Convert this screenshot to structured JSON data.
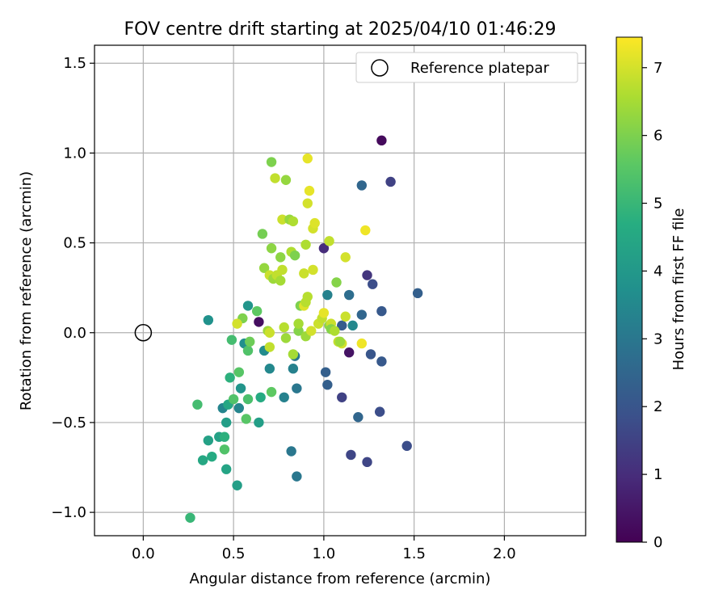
{
  "chart_data": {
    "type": "scatter",
    "title": "FOV centre drift starting at 2025/04/10 01:46:29",
    "xlabel": "Angular distance from reference (arcmin)",
    "ylabel": "Rotation from reference (arcmin)",
    "xlim": [
      -0.27,
      2.45
    ],
    "ylim": [
      -1.13,
      1.6
    ],
    "xticks": [
      0.0,
      0.5,
      1.0,
      1.5,
      2.0
    ],
    "xtick_labels": [
      "0.0",
      "0.5",
      "1.0",
      "1.5",
      "2.0"
    ],
    "yticks": [
      -1.0,
      -0.5,
      0.0,
      0.5,
      1.0,
      1.5
    ],
    "ytick_labels": [
      "−1.0",
      "−0.5",
      "0.0",
      "0.5",
      "1.0",
      "1.5"
    ],
    "grid": true,
    "legend": {
      "position": "top-right",
      "entries": [
        {
          "label": "Reference platepar",
          "marker": "open-circle"
        }
      ]
    },
    "reference": {
      "x": 0.0,
      "y": 0.0
    },
    "colorbar": {
      "label": "Hours from first FF file",
      "colormap": "viridis",
      "range": [
        0,
        7.45
      ],
      "ticks": [
        0,
        1,
        2,
        3,
        4,
        5,
        6,
        7
      ],
      "tick_labels": [
        "0",
        "1",
        "2",
        "3",
        "4",
        "5",
        "6",
        "7"
      ]
    },
    "points": [
      {
        "x": 1.32,
        "y": 1.07,
        "h": 0.2
      },
      {
        "x": 1.37,
        "y": 0.84,
        "h": 1.5
      },
      {
        "x": 1.21,
        "y": 0.82,
        "h": 2.5
      },
      {
        "x": 1.52,
        "y": 0.22,
        "h": 2.3
      },
      {
        "x": 1.24,
        "y": 0.32,
        "h": 1.2
      },
      {
        "x": 1.27,
        "y": 0.27,
        "h": 1.8
      },
      {
        "x": 1.0,
        "y": 0.47,
        "h": 1.0
      },
      {
        "x": 1.14,
        "y": 0.21,
        "h": 2.7
      },
      {
        "x": 1.02,
        "y": 0.21,
        "h": 3.3
      },
      {
        "x": 1.32,
        "y": 0.12,
        "h": 2.1
      },
      {
        "x": 1.21,
        "y": 0.1,
        "h": 2.5
      },
      {
        "x": 1.16,
        "y": 0.04,
        "h": 3.5
      },
      {
        "x": 1.1,
        "y": 0.04,
        "h": 2.2
      },
      {
        "x": 0.64,
        "y": 0.06,
        "h": 0.3
      },
      {
        "x": 1.14,
        "y": -0.11,
        "h": 0.4
      },
      {
        "x": 1.26,
        "y": -0.12,
        "h": 2.0
      },
      {
        "x": 1.32,
        "y": -0.16,
        "h": 2.1
      },
      {
        "x": 1.01,
        "y": -0.22,
        "h": 2.3
      },
      {
        "x": 1.02,
        "y": -0.29,
        "h": 2.3
      },
      {
        "x": 1.1,
        "y": -0.36,
        "h": 1.5
      },
      {
        "x": 1.19,
        "y": -0.47,
        "h": 2.5
      },
      {
        "x": 1.31,
        "y": -0.44,
        "h": 1.8
      },
      {
        "x": 1.46,
        "y": -0.63,
        "h": 1.8
      },
      {
        "x": 1.15,
        "y": -0.68,
        "h": 1.6
      },
      {
        "x": 1.24,
        "y": -0.72,
        "h": 1.6
      },
      {
        "x": 0.82,
        "y": -0.66,
        "h": 3.0
      },
      {
        "x": 0.85,
        "y": -0.8,
        "h": 3.0
      },
      {
        "x": 0.85,
        "y": -0.31,
        "h": 3.0
      },
      {
        "x": 0.78,
        "y": -0.36,
        "h": 3.3
      },
      {
        "x": 0.83,
        "y": -0.2,
        "h": 3.3
      },
      {
        "x": 0.84,
        "y": -0.13,
        "h": 3.0
      },
      {
        "x": 0.7,
        "y": -0.2,
        "h": 3.5
      },
      {
        "x": 0.67,
        "y": -0.1,
        "h": 3.6
      },
      {
        "x": 0.36,
        "y": 0.07,
        "h": 3.8
      },
      {
        "x": 0.58,
        "y": 0.15,
        "h": 3.9
      },
      {
        "x": 0.56,
        "y": -0.06,
        "h": 3.7
      },
      {
        "x": 0.54,
        "y": -0.31,
        "h": 3.9
      },
      {
        "x": 0.53,
        "y": -0.42,
        "h": 3.4
      },
      {
        "x": 0.44,
        "y": -0.42,
        "h": 3.4
      },
      {
        "x": 0.64,
        "y": -0.5,
        "h": 4.2
      },
      {
        "x": 0.65,
        "y": -0.36,
        "h": 4.6
      },
      {
        "x": 0.46,
        "y": -0.5,
        "h": 4.2
      },
      {
        "x": 0.47,
        "y": -0.4,
        "h": 4.5
      },
      {
        "x": 0.42,
        "y": -0.58,
        "h": 4.3
      },
      {
        "x": 0.36,
        "y": -0.6,
        "h": 4.3
      },
      {
        "x": 0.45,
        "y": -0.58,
        "h": 4.8
      },
      {
        "x": 0.33,
        "y": -0.71,
        "h": 4.5
      },
      {
        "x": 0.38,
        "y": -0.69,
        "h": 4.6
      },
      {
        "x": 0.46,
        "y": -0.76,
        "h": 4.4
      },
      {
        "x": 0.52,
        "y": -0.85,
        "h": 4.2
      },
      {
        "x": 0.26,
        "y": -1.03,
        "h": 5.0
      },
      {
        "x": 0.3,
        "y": -0.4,
        "h": 5.2
      },
      {
        "x": 0.45,
        "y": -0.65,
        "h": 5.4
      },
      {
        "x": 0.5,
        "y": -0.37,
        "h": 5.4
      },
      {
        "x": 0.48,
        "y": -0.25,
        "h": 4.8
      },
      {
        "x": 0.53,
        "y": -0.22,
        "h": 5.5
      },
      {
        "x": 0.58,
        "y": -0.37,
        "h": 5.3
      },
      {
        "x": 0.57,
        "y": -0.48,
        "h": 5.5
      },
      {
        "x": 0.71,
        "y": -0.33,
        "h": 5.6
      },
      {
        "x": 0.49,
        "y": -0.04,
        "h": 5.2
      },
      {
        "x": 0.58,
        "y": -0.1,
        "h": 5.4
      },
      {
        "x": 0.59,
        "y": -0.05,
        "h": 5.8
      },
      {
        "x": 0.55,
        "y": 0.08,
        "h": 6.0
      },
      {
        "x": 0.63,
        "y": 0.12,
        "h": 5.6
      },
      {
        "x": 0.52,
        "y": 0.05,
        "h": 7.0
      },
      {
        "x": 0.69,
        "y": 0.01,
        "h": 6.4
      },
      {
        "x": 0.7,
        "y": 0.0,
        "h": 6.9
      },
      {
        "x": 0.7,
        "y": -0.08,
        "h": 6.8
      },
      {
        "x": 0.78,
        "y": 0.03,
        "h": 6.7
      },
      {
        "x": 0.79,
        "y": -0.03,
        "h": 6.4
      },
      {
        "x": 0.83,
        "y": -0.12,
        "h": 6.5
      },
      {
        "x": 0.86,
        "y": 0.01,
        "h": 6.1
      },
      {
        "x": 0.86,
        "y": 0.05,
        "h": 6.5
      },
      {
        "x": 0.87,
        "y": 0.15,
        "h": 6.0
      },
      {
        "x": 0.89,
        "y": 0.15,
        "h": 7.1
      },
      {
        "x": 0.9,
        "y": -0.02,
        "h": 6.4
      },
      {
        "x": 0.91,
        "y": 0.2,
        "h": 6.7
      },
      {
        "x": 0.9,
        "y": 0.17,
        "h": 6.7
      },
      {
        "x": 0.93,
        "y": 0.01,
        "h": 7.0
      },
      {
        "x": 0.97,
        "y": 0.05,
        "h": 6.9
      },
      {
        "x": 0.99,
        "y": 0.08,
        "h": 6.8
      },
      {
        "x": 1.0,
        "y": 0.11,
        "h": 7.2
      },
      {
        "x": 1.03,
        "y": 0.04,
        "h": 6.2
      },
      {
        "x": 1.04,
        "y": 0.05,
        "h": 6.9
      },
      {
        "x": 1.04,
        "y": 0.02,
        "h": 6.1
      },
      {
        "x": 1.06,
        "y": 0.01,
        "h": 6.6
      },
      {
        "x": 1.08,
        "y": -0.05,
        "h": 6.8
      },
      {
        "x": 1.1,
        "y": -0.06,
        "h": 7.0
      },
      {
        "x": 1.09,
        "y": -0.05,
        "h": 6.4
      },
      {
        "x": 1.12,
        "y": 0.09,
        "h": 6.9
      },
      {
        "x": 1.21,
        "y": -0.06,
        "h": 7.3
      },
      {
        "x": 1.07,
        "y": 0.28,
        "h": 6.1
      },
      {
        "x": 1.12,
        "y": 0.42,
        "h": 7.0
      },
      {
        "x": 1.23,
        "y": 0.57,
        "h": 7.3
      },
      {
        "x": 0.67,
        "y": 0.36,
        "h": 6.3
      },
      {
        "x": 0.7,
        "y": 0.32,
        "h": 6.9
      },
      {
        "x": 0.72,
        "y": 0.3,
        "h": 6.4
      },
      {
        "x": 0.74,
        "y": 0.32,
        "h": 6.8
      },
      {
        "x": 0.76,
        "y": 0.29,
        "h": 6.5
      },
      {
        "x": 0.77,
        "y": 0.35,
        "h": 6.8
      },
      {
        "x": 0.76,
        "y": 0.42,
        "h": 6.2
      },
      {
        "x": 0.71,
        "y": 0.47,
        "h": 6.2
      },
      {
        "x": 0.66,
        "y": 0.55,
        "h": 5.9
      },
      {
        "x": 0.82,
        "y": 0.45,
        "h": 6.6
      },
      {
        "x": 0.84,
        "y": 0.43,
        "h": 6.0
      },
      {
        "x": 0.89,
        "y": 0.33,
        "h": 6.9
      },
      {
        "x": 0.9,
        "y": 0.49,
        "h": 6.6
      },
      {
        "x": 0.94,
        "y": 0.35,
        "h": 7.0
      },
      {
        "x": 1.03,
        "y": 0.51,
        "h": 6.8
      },
      {
        "x": 0.94,
        "y": 0.58,
        "h": 7.0
      },
      {
        "x": 0.95,
        "y": 0.61,
        "h": 7.1
      },
      {
        "x": 0.77,
        "y": 0.63,
        "h": 6.9
      },
      {
        "x": 0.81,
        "y": 0.63,
        "h": 6.3
      },
      {
        "x": 0.83,
        "y": 0.62,
        "h": 6.6
      },
      {
        "x": 0.91,
        "y": 0.72,
        "h": 7.0
      },
      {
        "x": 0.92,
        "y": 0.79,
        "h": 7.2
      },
      {
        "x": 0.71,
        "y": 0.95,
        "h": 6.0
      },
      {
        "x": 0.73,
        "y": 0.86,
        "h": 6.8
      },
      {
        "x": 0.79,
        "y": 0.85,
        "h": 6.3
      },
      {
        "x": 0.91,
        "y": 0.97,
        "h": 7.2
      }
    ]
  }
}
